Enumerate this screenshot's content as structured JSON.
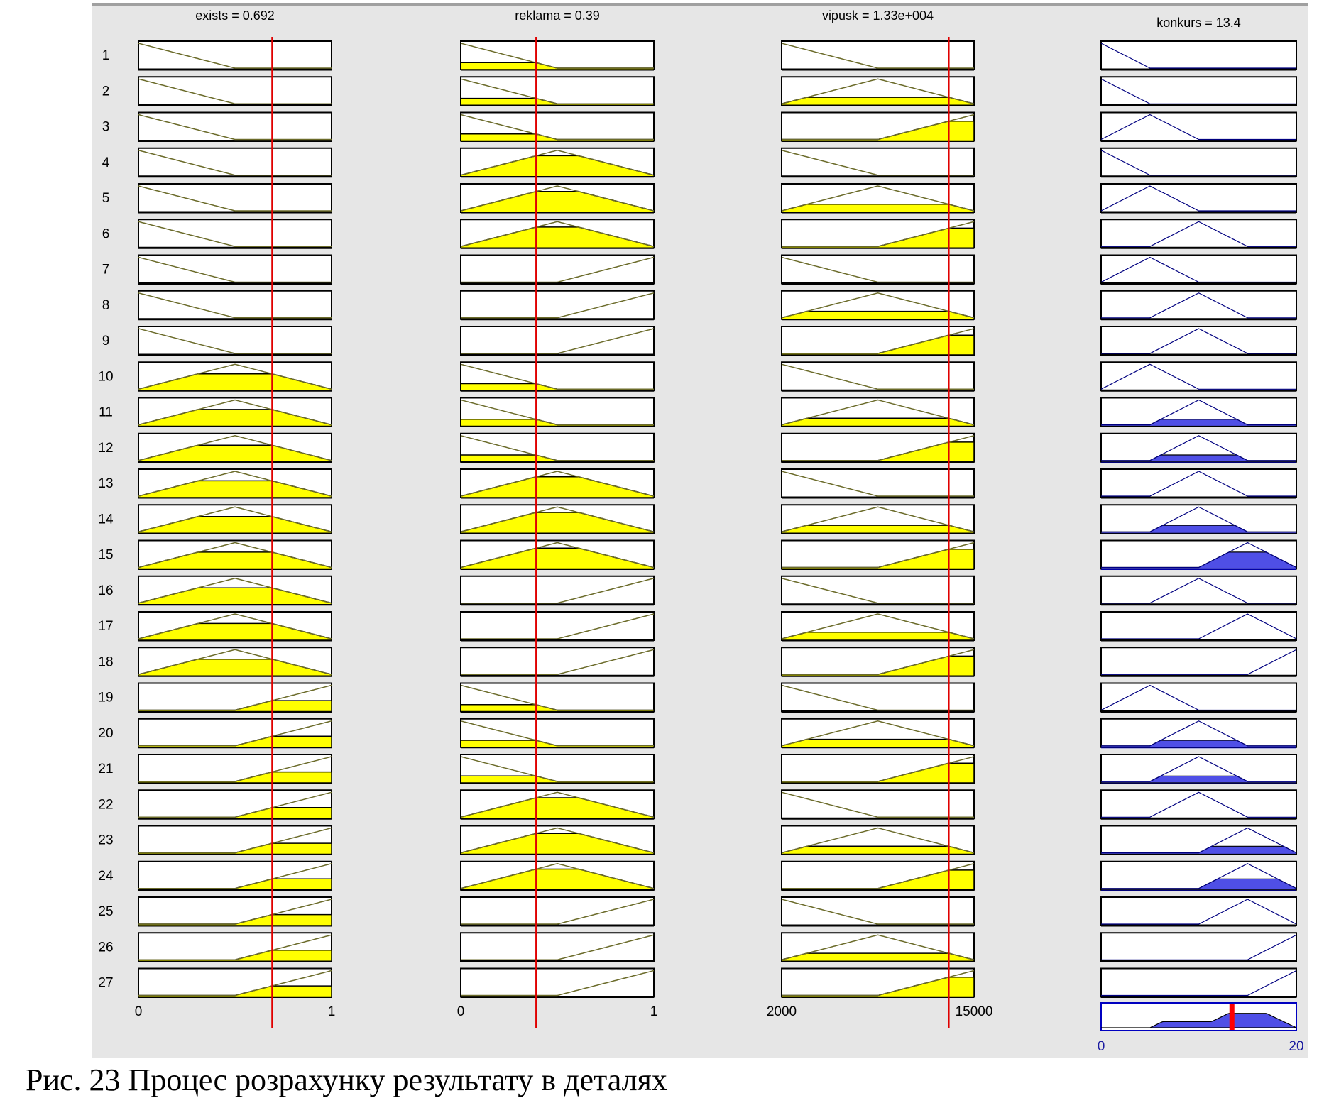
{
  "chart_data": {
    "type": "fuzzy-rule-viewer",
    "num_rules": 27,
    "inputs": [
      {
        "name": "exists",
        "title": "exists = 0.692",
        "value": 0.692,
        "range": [
          0,
          1
        ],
        "tick_labels": [
          "0",
          "1"
        ],
        "mfs": {
          "low": [
            -0.5,
            0,
            0.5
          ],
          "mid": [
            0,
            0.5,
            1
          ],
          "high": [
            0.5,
            1,
            1.5
          ]
        }
      },
      {
        "name": "reklama",
        "title": "reklama = 0.39",
        "value": 0.39,
        "range": [
          0,
          1
        ],
        "tick_labels": [
          "0",
          "1"
        ],
        "mfs": {
          "low": [
            -0.5,
            0,
            0.5
          ],
          "mid": [
            0,
            0.5,
            1
          ],
          "high": [
            0.5,
            1,
            1.5
          ]
        }
      },
      {
        "name": "vipusk",
        "title": "vipusk = 1.33e+004",
        "value": 13300,
        "range": [
          2000,
          15000
        ],
        "tick_labels": [
          "2000",
          "15000"
        ],
        "mfs": {
          "low": [
            -4500,
            2000,
            8500
          ],
          "mid": [
            2000,
            8500,
            15000
          ],
          "high": [
            8500,
            15000,
            21500
          ]
        }
      }
    ],
    "output": {
      "name": "konkurs",
      "title": "konkurs = 13.4",
      "value": 13.4,
      "range": [
        0,
        20
      ],
      "tick_labels": [
        "0",
        "20"
      ],
      "mfs": {
        "a": [
          -5,
          0,
          5
        ],
        "b": [
          0,
          5,
          10
        ],
        "c": [
          5,
          10,
          15
        ],
        "d": [
          10,
          15,
          20
        ],
        "e": [
          15,
          20,
          25
        ]
      }
    },
    "rules": [
      [
        "low",
        "low",
        "low",
        "a"
      ],
      [
        "low",
        "low",
        "mid",
        "a"
      ],
      [
        "low",
        "low",
        "high",
        "b"
      ],
      [
        "low",
        "mid",
        "low",
        "a"
      ],
      [
        "low",
        "mid",
        "mid",
        "b"
      ],
      [
        "low",
        "mid",
        "high",
        "c"
      ],
      [
        "low",
        "high",
        "low",
        "b"
      ],
      [
        "low",
        "high",
        "mid",
        "c"
      ],
      [
        "low",
        "high",
        "high",
        "c"
      ],
      [
        "mid",
        "low",
        "low",
        "b"
      ],
      [
        "mid",
        "low",
        "mid",
        "c"
      ],
      [
        "mid",
        "low",
        "high",
        "c"
      ],
      [
        "mid",
        "mid",
        "low",
        "c"
      ],
      [
        "mid",
        "mid",
        "mid",
        "c"
      ],
      [
        "mid",
        "mid",
        "high",
        "d"
      ],
      [
        "mid",
        "high",
        "low",
        "c"
      ],
      [
        "mid",
        "high",
        "mid",
        "d"
      ],
      [
        "mid",
        "high",
        "high",
        "e"
      ],
      [
        "high",
        "low",
        "low",
        "b"
      ],
      [
        "high",
        "low",
        "mid",
        "c"
      ],
      [
        "high",
        "low",
        "high",
        "c"
      ],
      [
        "high",
        "mid",
        "low",
        "c"
      ],
      [
        "high",
        "mid",
        "mid",
        "d"
      ],
      [
        "high",
        "mid",
        "high",
        "d"
      ],
      [
        "high",
        "high",
        "low",
        "d"
      ],
      [
        "high",
        "high",
        "mid",
        "e"
      ],
      [
        "high",
        "high",
        "high",
        "e"
      ]
    ],
    "rule_labels": [
      "1",
      "2",
      "3",
      "4",
      "5",
      "6",
      "7",
      "8",
      "9",
      "10",
      "11",
      "12",
      "13",
      "14",
      "15",
      "16",
      "17",
      "18",
      "19",
      "20",
      "21",
      "22",
      "23",
      "24",
      "25",
      "26",
      "27"
    ],
    "colors": {
      "input_fill": "#ffff00",
      "output_fill": "#4f4fe6",
      "mf_line_input": "#6b6b2a",
      "mf_line_output": "#000080",
      "marker": "#e00000",
      "panel": "#e6e6e6"
    }
  },
  "caption": "Рис. 23 Процес розрахунку результату в деталях"
}
